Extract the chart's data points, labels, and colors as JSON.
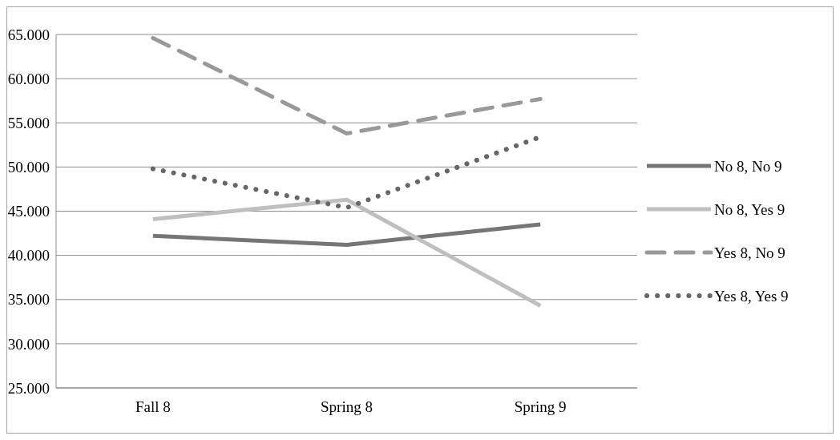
{
  "chart_data": {
    "type": "line",
    "categories": [
      "Fall 8",
      "Spring 8",
      "Spring 9"
    ],
    "series": [
      {
        "name": "No 8, No 9",
        "color": "#767676",
        "values": [
          42.2,
          41.2,
          43.5
        ],
        "line_style": "solid"
      },
      {
        "name": "No 8, Yes 9",
        "color": "#bfbfbf",
        "values": [
          44.1,
          46.3,
          34.3
        ],
        "line_style": "solid"
      },
      {
        "name": "Yes 8, No 9",
        "color": "#999999",
        "values": [
          64.6,
          53.8,
          57.7
        ],
        "line_style": "dashed"
      },
      {
        "name": "Yes 8, Yes 9",
        "color": "#666666",
        "values": [
          49.8,
          45.4,
          53.4
        ],
        "line_style": "dotted"
      }
    ],
    "ylim": [
      25,
      65
    ],
    "yticks": [
      {
        "value": 25,
        "label": "25.000"
      },
      {
        "value": 30,
        "label": "30.000"
      },
      {
        "value": 35,
        "label": "35.000"
      },
      {
        "value": 40,
        "label": "40.000"
      },
      {
        "value": 45,
        "label": "45.000"
      },
      {
        "value": 50,
        "label": "50.000"
      },
      {
        "value": 55,
        "label": "55.000"
      },
      {
        "value": 60,
        "label": "60.000"
      },
      {
        "value": 65,
        "label": "65.000"
      }
    ],
    "grid": "y",
    "legend": "right"
  }
}
